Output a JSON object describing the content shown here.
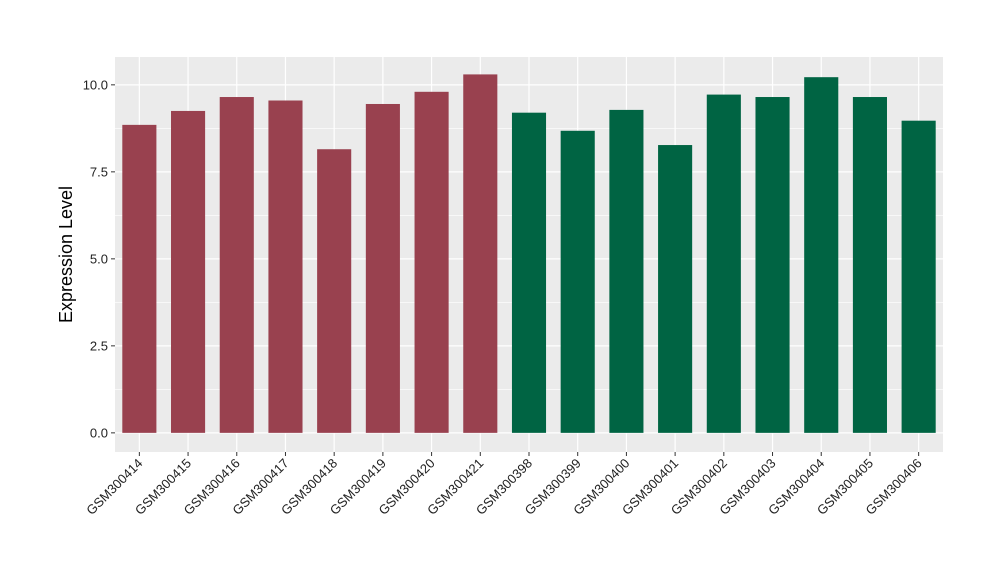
{
  "chart_data": {
    "type": "bar",
    "title": "",
    "xlabel": "",
    "ylabel": "Expression Level",
    "ylim": [
      -0.55,
      10.8
    ],
    "yticks": [
      0.0,
      2.5,
      5.0,
      7.5,
      10.0
    ],
    "ytick_labels": [
      "0.0",
      "2.5",
      "5.0",
      "7.5",
      "10.0"
    ],
    "grid": true,
    "legend": "none",
    "categories": [
      "GSM300414",
      "GSM300415",
      "GSM300416",
      "GSM300417",
      "GSM300418",
      "GSM300419",
      "GSM300420",
      "GSM300421",
      "GSM300398",
      "GSM300399",
      "GSM300400",
      "GSM300401",
      "GSM300402",
      "GSM300403",
      "GSM300404",
      "GSM300405",
      "GSM300406"
    ],
    "values": [
      8.85,
      9.25,
      9.65,
      9.55,
      8.15,
      9.45,
      9.8,
      10.3,
      9.2,
      8.68,
      9.28,
      8.27,
      9.72,
      9.65,
      10.22,
      9.65,
      8.97
    ],
    "bar_colors": [
      "#99414f",
      "#99414f",
      "#99414f",
      "#99414f",
      "#99414f",
      "#99414f",
      "#99414f",
      "#99414f",
      "#006443",
      "#006443",
      "#006443",
      "#006443",
      "#006443",
      "#006443",
      "#006443",
      "#006443",
      "#006443"
    ],
    "panel_background": "#ebebeb",
    "grid_color": "#ffffff"
  }
}
